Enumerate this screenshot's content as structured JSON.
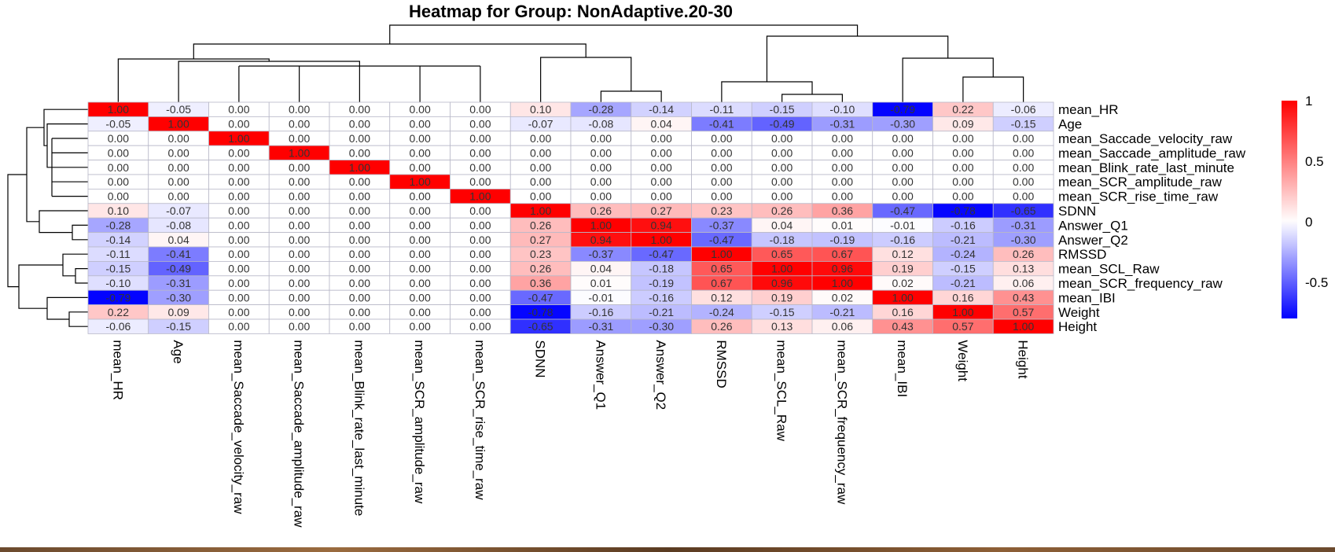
{
  "chart_data": {
    "type": "heatmap",
    "title": "Heatmap for Group: NonAdaptive.20-30",
    "rows": [
      "mean_HR",
      "Age",
      "mean_Saccade_velocity_raw",
      "mean_Saccade_amplitude_raw",
      "mean_Blink_rate_last_minute",
      "mean_SCR_amplitude_raw",
      "mean_SCR_rise_time_raw",
      "SDNN",
      "Answer_Q1",
      "Answer_Q2",
      "RMSSD",
      "mean_SCL_Raw",
      "mean_SCR_frequency_raw",
      "mean_IBI",
      "Weight",
      "Height"
    ],
    "columns": [
      "mean_HR",
      "Age",
      "mean_Saccade_velocity_raw",
      "mean_Saccade_amplitude_raw",
      "mean_Blink_rate_last_minute",
      "mean_SCR_amplitude_raw",
      "mean_SCR_rise_time_raw",
      "SDNN",
      "Answer_Q1",
      "Answer_Q2",
      "RMSSD",
      "mean_SCL_Raw",
      "mean_SCR_frequency_raw",
      "mean_IBI",
      "Weight",
      "Height"
    ],
    "values": [
      [
        1.0,
        -0.05,
        0.0,
        0.0,
        0.0,
        0.0,
        0.0,
        0.1,
        -0.28,
        -0.14,
        -0.11,
        -0.15,
        -0.1,
        -0.79,
        0.22,
        -0.06
      ],
      [
        -0.05,
        1.0,
        0.0,
        0.0,
        0.0,
        0.0,
        0.0,
        -0.07,
        -0.08,
        0.04,
        -0.41,
        -0.49,
        -0.31,
        -0.3,
        0.09,
        -0.15
      ],
      [
        0.0,
        0.0,
        1.0,
        0.0,
        0.0,
        0.0,
        0.0,
        0.0,
        0.0,
        0.0,
        0.0,
        0.0,
        0.0,
        0.0,
        0.0,
        0.0
      ],
      [
        0.0,
        0.0,
        0.0,
        1.0,
        0.0,
        0.0,
        0.0,
        0.0,
        0.0,
        0.0,
        0.0,
        0.0,
        0.0,
        0.0,
        0.0,
        0.0
      ],
      [
        0.0,
        0.0,
        0.0,
        0.0,
        1.0,
        0.0,
        0.0,
        0.0,
        0.0,
        0.0,
        0.0,
        0.0,
        0.0,
        0.0,
        0.0,
        0.0
      ],
      [
        0.0,
        0.0,
        0.0,
        0.0,
        0.0,
        1.0,
        0.0,
        0.0,
        0.0,
        0.0,
        0.0,
        0.0,
        0.0,
        0.0,
        0.0,
        0.0
      ],
      [
        0.0,
        0.0,
        0.0,
        0.0,
        0.0,
        0.0,
        1.0,
        0.0,
        0.0,
        0.0,
        0.0,
        0.0,
        0.0,
        0.0,
        0.0,
        0.0
      ],
      [
        0.1,
        -0.07,
        0.0,
        0.0,
        0.0,
        0.0,
        0.0,
        1.0,
        0.26,
        0.27,
        0.23,
        0.26,
        0.36,
        -0.47,
        -0.78,
        -0.65
      ],
      [
        -0.28,
        -0.08,
        0.0,
        0.0,
        0.0,
        0.0,
        0.0,
        0.26,
        1.0,
        0.94,
        -0.37,
        0.04,
        0.01,
        -0.01,
        -0.16,
        -0.31
      ],
      [
        -0.14,
        0.04,
        0.0,
        0.0,
        0.0,
        0.0,
        0.0,
        0.27,
        0.94,
        1.0,
        -0.47,
        -0.18,
        -0.19,
        -0.16,
        -0.21,
        -0.3
      ],
      [
        -0.11,
        -0.41,
        0.0,
        0.0,
        0.0,
        0.0,
        0.0,
        0.23,
        -0.37,
        -0.47,
        1.0,
        0.65,
        0.67,
        0.12,
        -0.24,
        0.26
      ],
      [
        -0.15,
        -0.49,
        0.0,
        0.0,
        0.0,
        0.0,
        0.0,
        0.26,
        0.04,
        -0.18,
        0.65,
        1.0,
        0.96,
        0.19,
        -0.15,
        0.13
      ],
      [
        -0.1,
        -0.31,
        0.0,
        0.0,
        0.0,
        0.0,
        0.0,
        0.36,
        0.01,
        -0.19,
        0.67,
        0.96,
        1.0,
        0.02,
        -0.21,
        0.06
      ],
      [
        -0.79,
        -0.3,
        0.0,
        0.0,
        0.0,
        0.0,
        0.0,
        -0.47,
        -0.01,
        -0.16,
        0.12,
        0.19,
        0.02,
        1.0,
        0.16,
        0.43
      ],
      [
        0.22,
        0.09,
        0.0,
        0.0,
        0.0,
        0.0,
        0.0,
        -0.78,
        -0.16,
        -0.21,
        -0.24,
        -0.15,
        -0.21,
        0.16,
        1.0,
        0.57
      ],
      [
        -0.06,
        -0.15,
        0.0,
        0.0,
        0.0,
        0.0,
        0.0,
        -0.65,
        -0.31,
        -0.3,
        0.26,
        0.13,
        0.06,
        0.43,
        0.57,
        1.0
      ]
    ],
    "color_scale": {
      "min_color": "#0000ff",
      "mid_color": "#ffffff",
      "max_color": "#ff0000"
    },
    "legend": {
      "ticks": [
        "1",
        "0.5",
        "0",
        "-0.5"
      ],
      "tick_values": [
        1,
        0.5,
        0,
        -0.5
      ],
      "range": [
        -0.8,
        1.0
      ],
      "placement": "right"
    },
    "dendrograms": {
      "row": "left",
      "column": "top"
    }
  }
}
